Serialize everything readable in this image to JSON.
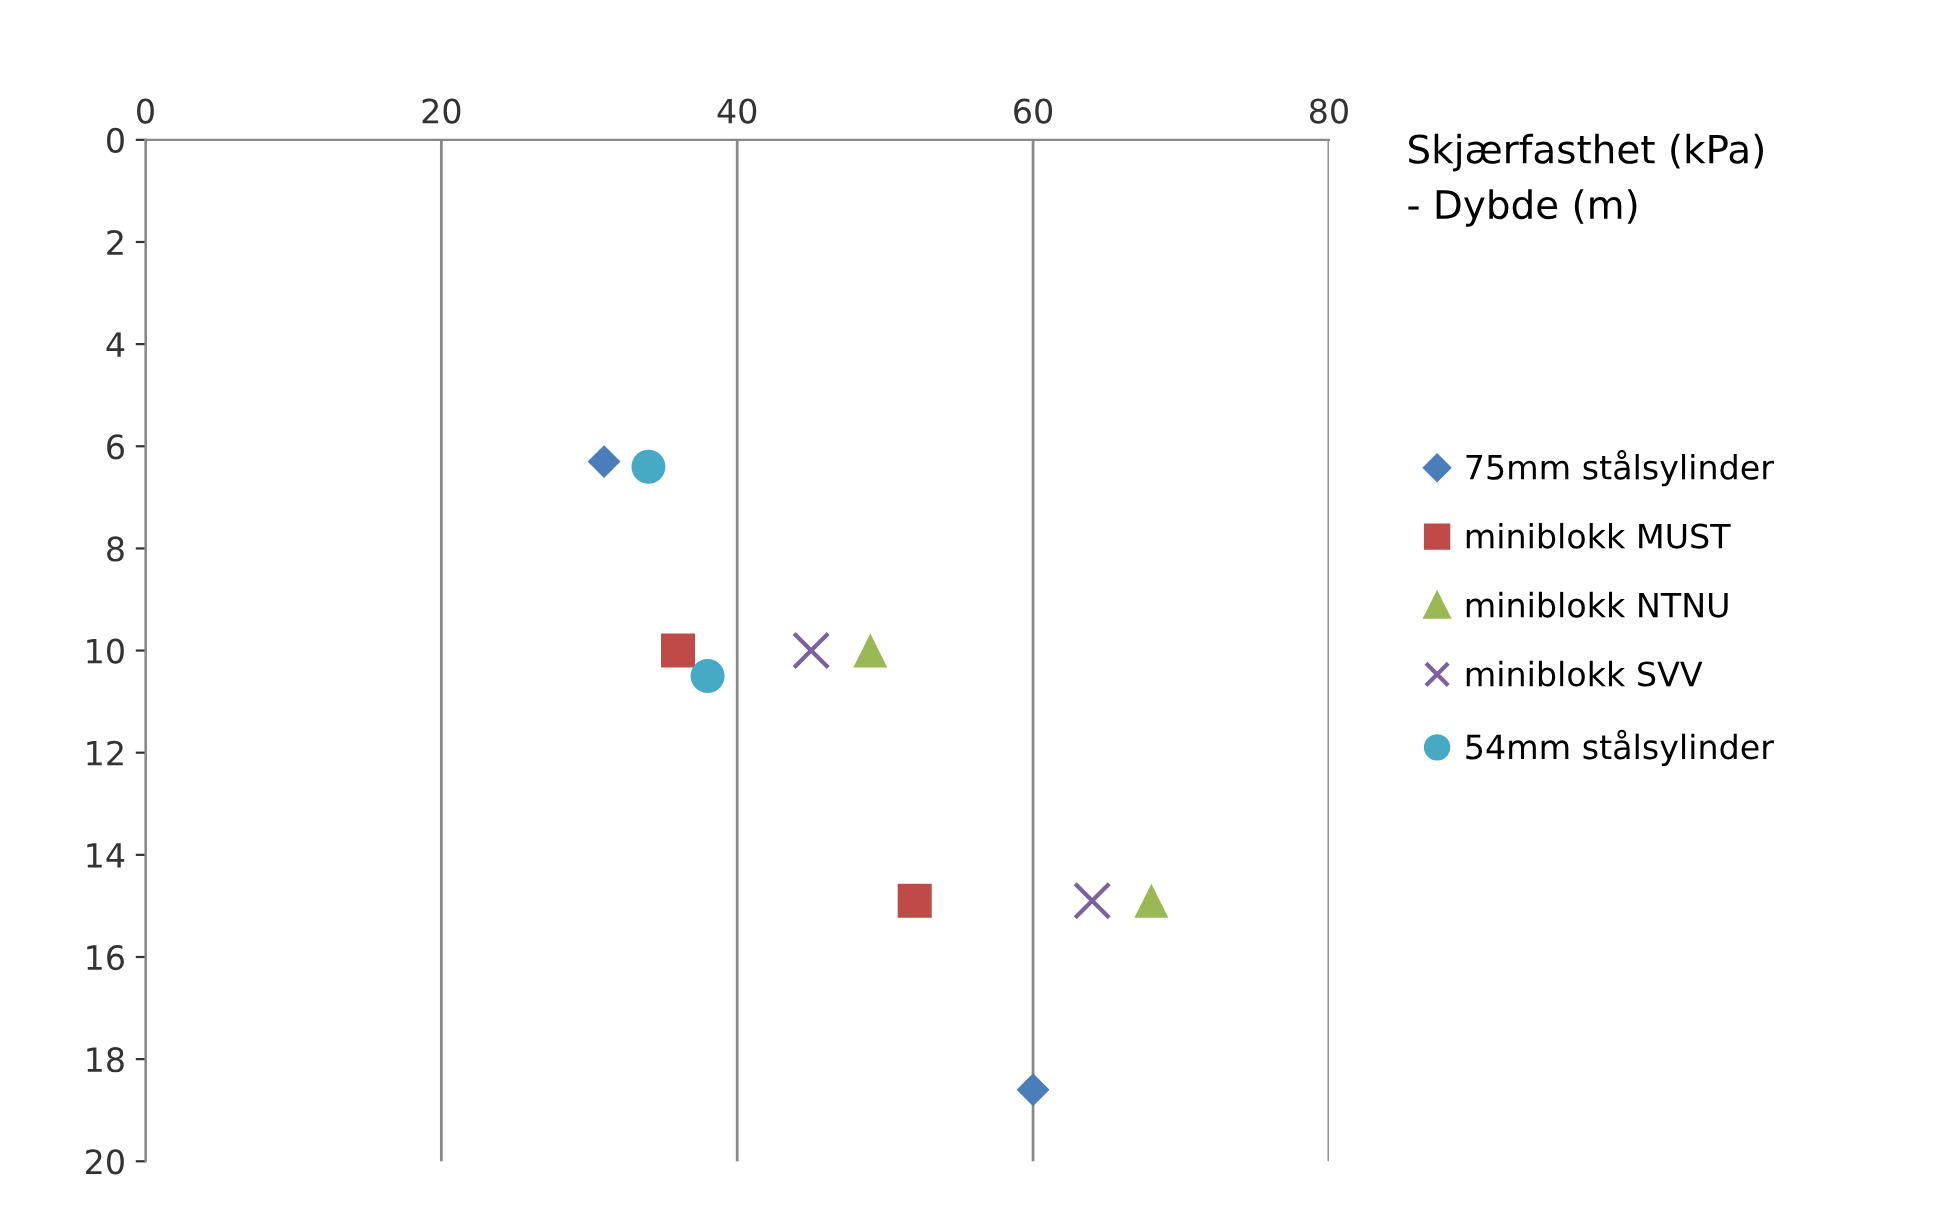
{
  "chart_data": {
    "type": "scatter",
    "title": "Skjærfasthet (kPa)\n- Dybde (m)",
    "xlim": [
      0,
      80
    ],
    "xticks": [
      0,
      20,
      40,
      60,
      80
    ],
    "ylim": [
      20,
      0
    ],
    "yticks": [
      0,
      2,
      4,
      6,
      8,
      10,
      12,
      14,
      16,
      18,
      20
    ],
    "grid": "x",
    "legend": "right",
    "series": [
      {
        "name": "75mm stålsylinder",
        "color": "#4a7ebb",
        "marker": "diamond",
        "x": [
          31,
          60
        ],
        "values": [
          6.3,
          18.6
        ]
      },
      {
        "name": "miniblokk MUST",
        "color": "#be4b48",
        "marker": "square",
        "x": [
          36,
          52
        ],
        "values": [
          10.0,
          14.9
        ]
      },
      {
        "name": "miniblokk NTNU",
        "color": "#98b954",
        "marker": "triangle",
        "x": [
          49,
          68
        ],
        "values": [
          10.0,
          14.9
        ]
      },
      {
        "name": "miniblokk SVV",
        "color": "#7d60a0",
        "marker": "cross",
        "x": [
          45,
          64
        ],
        "values": [
          10.0,
          14.9
        ]
      },
      {
        "name": "54mm stålsylinder",
        "color": "#46aac5",
        "marker": "circle",
        "x": [
          34,
          38
        ],
        "values": [
          6.4,
          10.5
        ]
      }
    ]
  }
}
